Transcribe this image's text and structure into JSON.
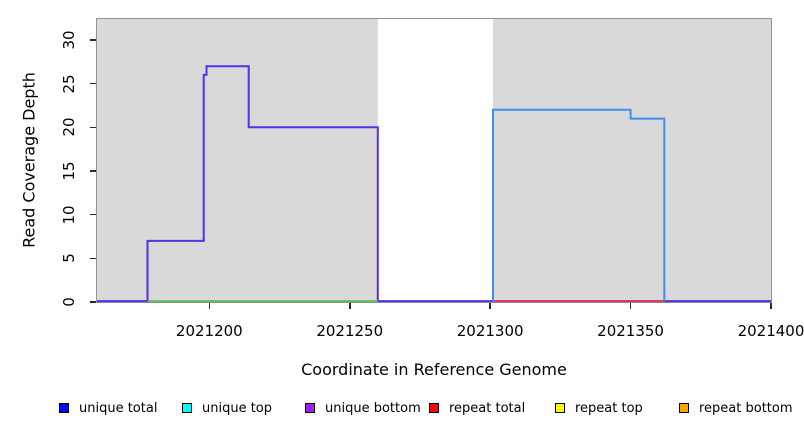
{
  "chart_data": {
    "type": "line",
    "subtype": "step-coverage",
    "title": "",
    "xlabel": "Coordinate in Reference Genome",
    "ylabel": "Read Coverage Depth",
    "xlim": [
      2021160,
      2021400
    ],
    "ylim": [
      0,
      32.4
    ],
    "xticks": [
      2021200,
      2021250,
      2021300,
      2021350,
      2021400
    ],
    "yticks": [
      0,
      5,
      10,
      15,
      20,
      25,
      30
    ],
    "grid": false,
    "legend_position": "bottom",
    "panel_background": "#d9d9d9",
    "shaded_panels": [
      {
        "from": 2021160,
        "to": 2021260
      },
      {
        "from": 2021301,
        "to": 2021400
      }
    ],
    "gap_region": {
      "from": 2021260,
      "to": 2021301,
      "color": "#ffffff"
    },
    "series": [
      {
        "name": "unique-coverage-left-block",
        "color": "#5430e8",
        "width": 2,
        "points": [
          [
            2021160,
            0
          ],
          [
            2021178,
            0
          ],
          [
            2021178,
            7
          ],
          [
            2021198,
            7
          ],
          [
            2021198,
            26
          ],
          [
            2021199,
            26
          ],
          [
            2021199,
            27
          ],
          [
            2021214,
            27
          ],
          [
            2021214,
            20
          ],
          [
            2021260,
            20
          ],
          [
            2021260,
            0
          ],
          [
            2021400,
            0
          ]
        ]
      },
      {
        "name": "zero-baseline-green",
        "color": "#52bd52",
        "width": 1.8,
        "points": [
          [
            2021178,
            0
          ],
          [
            2021260,
            0
          ]
        ]
      },
      {
        "name": "zero-baseline-red",
        "color": "#ee3348",
        "width": 1.8,
        "points": [
          [
            2021301,
            0
          ],
          [
            2021362,
            0
          ]
        ]
      },
      {
        "name": "unique-coverage-right-block",
        "color": "#3f8ef4",
        "width": 2,
        "points": [
          [
            2021301,
            0
          ],
          [
            2021301,
            22
          ],
          [
            2021350,
            22
          ],
          [
            2021350,
            21
          ],
          [
            2021362,
            21
          ],
          [
            2021362,
            0
          ]
        ]
      }
    ],
    "legend": [
      {
        "label": "unique total",
        "color": "#0000ff"
      },
      {
        "label": "unique top",
        "color": "#00ffff"
      },
      {
        "label": "unique bottom",
        "color": "#a020f0"
      },
      {
        "label": "repeat total",
        "color": "#ff0000"
      },
      {
        "label": "repeat top",
        "color": "#ffff00"
      },
      {
        "label": "repeat bottom",
        "color": "#ffa500"
      }
    ]
  }
}
